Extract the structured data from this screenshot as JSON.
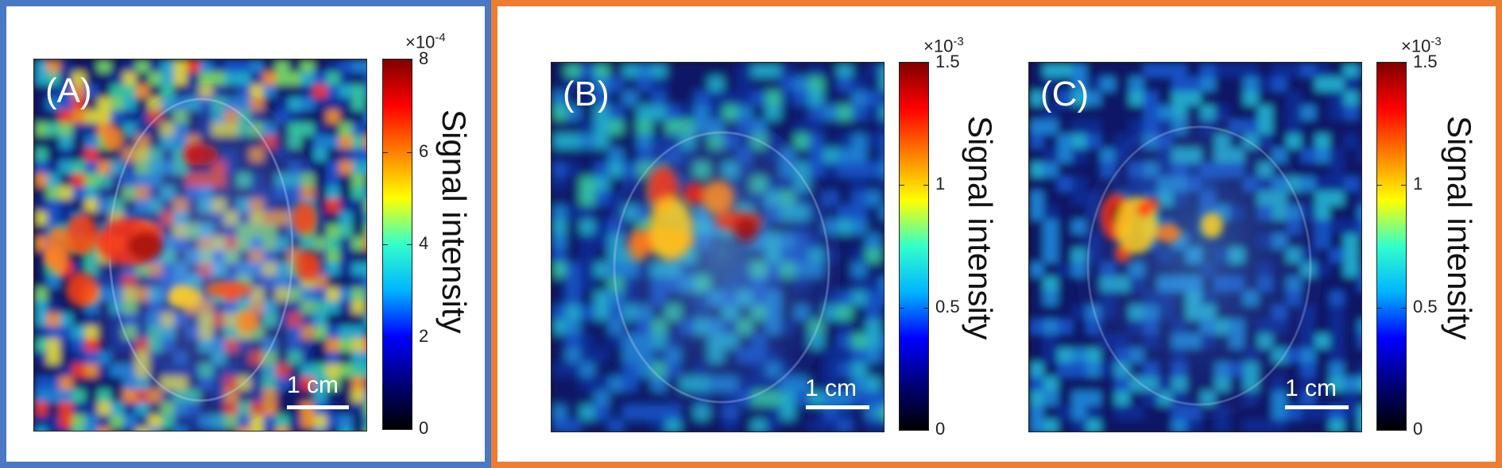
{
  "panels": [
    {
      "label": "(A)",
      "scalebar": "1 cm",
      "colorbar": {
        "title": "Signal intensity",
        "multiplier_base": "×10",
        "multiplier_exp": "-4",
        "ticks": [
          "8",
          "6",
          "4",
          "2",
          "0"
        ],
        "tick_values": [
          8,
          6,
          4,
          2,
          0
        ],
        "max": 8
      }
    },
    {
      "label": "(B)",
      "scalebar": "1 cm",
      "colorbar": {
        "title": "Signal intensity",
        "multiplier_base": "×10",
        "multiplier_exp": "-3",
        "ticks": [
          "1.5",
          "1",
          "0.5",
          "0"
        ],
        "tick_values": [
          1.5,
          1,
          0.5,
          0
        ],
        "max": 1.5
      }
    },
    {
      "label": "(C)",
      "scalebar": "1 cm",
      "colorbar": {
        "title": "Signal intensity",
        "multiplier_base": "×10",
        "multiplier_exp": "-3",
        "ticks": [
          "1.5",
          "1",
          "0.5",
          "0"
        ],
        "tick_values": [
          1.5,
          1,
          0.5,
          0
        ],
        "max": 1.5
      }
    }
  ],
  "colors": {
    "frame_left": "#4a78c4",
    "frame_right": "#ee7d34",
    "colormap": [
      "#000000",
      "#00007a",
      "#0000ff",
      "#00b4ff",
      "#33ffcc",
      "#ffff00",
      "#ff8000",
      "#ff0000",
      "#800000"
    ]
  }
}
